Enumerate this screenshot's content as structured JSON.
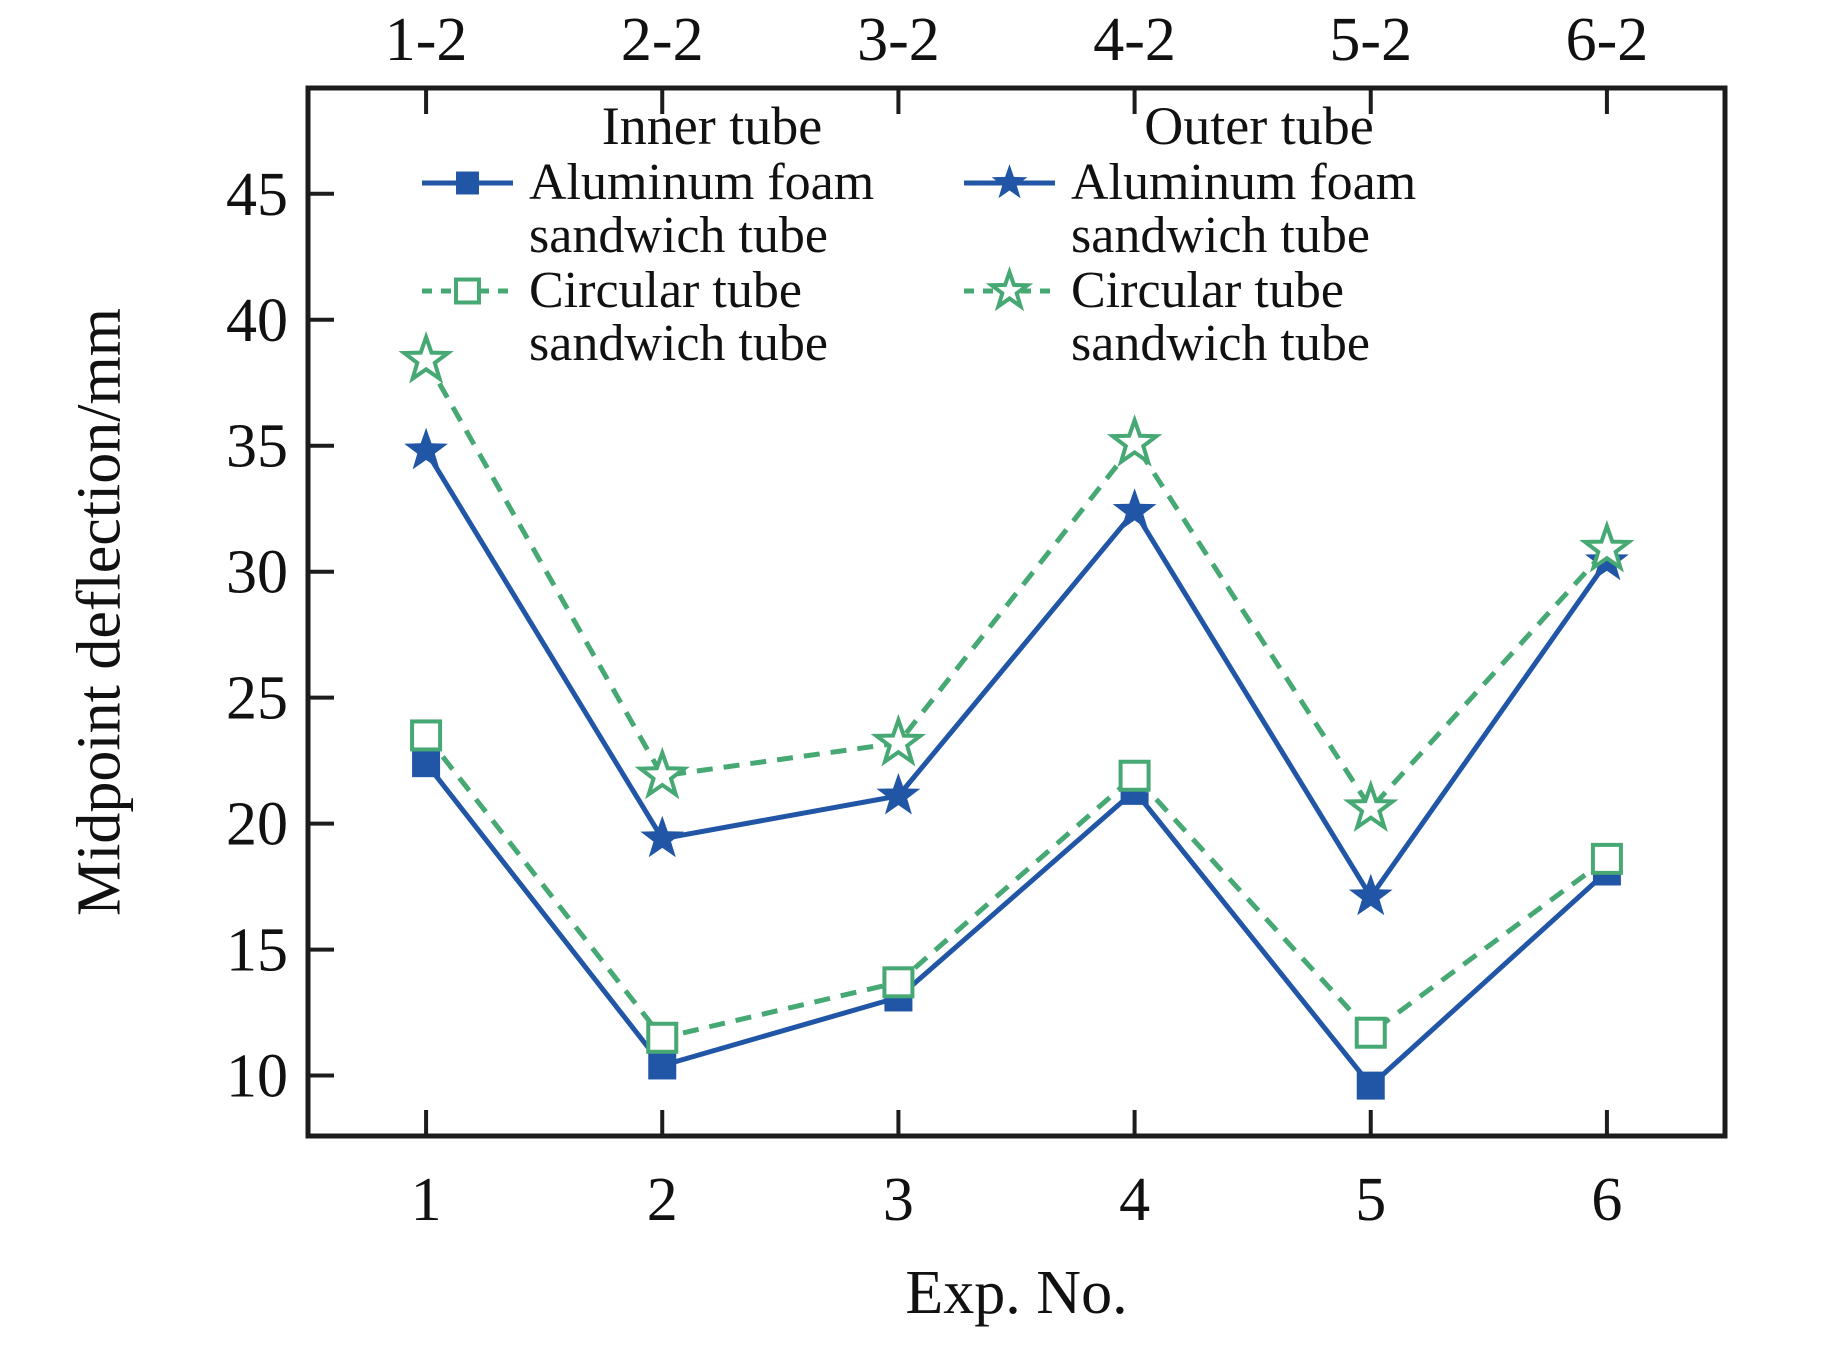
{
  "chart_data": {
    "type": "line",
    "title": "",
    "xlabel": "Exp. No.",
    "ylabel": "Midpoint deflection/mm",
    "x": [
      1,
      2,
      3,
      4,
      5,
      6
    ],
    "x_tick_labels_bottom": [
      "1",
      "2",
      "3",
      "4",
      "5",
      "6"
    ],
    "x_tick_labels_top": [
      "1-2",
      "2-2",
      "3-2",
      "4-2",
      "5-2",
      "6-2"
    ],
    "y_ticks": [
      10,
      15,
      20,
      25,
      30,
      35,
      40,
      45
    ],
    "xlim": [
      0.5,
      6.5
    ],
    "ylim": [
      7.6,
      49.2
    ],
    "grid": false,
    "tick_direction": "in",
    "series": [
      {
        "name": "Inner tube - Aluminum foam sandwich tube",
        "marker": "square-filled",
        "line_style": "solid",
        "color": "#2156a6",
        "values": [
          22.4,
          10.4,
          13.1,
          21.3,
          9.6,
          18.1
        ]
      },
      {
        "name": "Inner tube - Circular tube sandwich tube",
        "marker": "square-open",
        "line_style": "dashed",
        "color": "#46a873",
        "values": [
          23.5,
          11.5,
          13.7,
          21.9,
          11.7,
          18.6
        ]
      },
      {
        "name": "Outer tube - Aluminum foam sandwich tube",
        "marker": "star-filled",
        "line_style": "solid",
        "color": "#2156a6",
        "values": [
          34.8,
          19.4,
          21.1,
          32.4,
          17.1,
          30.4
        ]
      },
      {
        "name": "Outer tube - Circular tube sandwich tube",
        "marker": "star-open",
        "line_style": "dashed",
        "color": "#46a873",
        "values": [
          38.4,
          21.9,
          23.2,
          35.1,
          20.6,
          30.9
        ]
      }
    ],
    "legend": {
      "position": "top-inside",
      "columns": [
        {
          "header": "Inner tube",
          "entries": [
            {
              "line1": "Aluminum foam",
              "line2": "sandwich tube",
              "series": 0
            },
            {
              "line1": "Circular tube",
              "line2": "sandwich tube",
              "series": 1
            }
          ]
        },
        {
          "header": "Outer tube",
          "entries": [
            {
              "line1": "Aluminum foam",
              "line2": "sandwich tube",
              "series": 2
            },
            {
              "line1": "Circular tube",
              "line2": "sandwich tube",
              "series": 3
            }
          ]
        }
      ]
    },
    "colors": {
      "blue": "#2156a6",
      "green": "#46a873",
      "axis": "#1c1c1c",
      "text": "#111111",
      "background": "#ffffff"
    }
  }
}
